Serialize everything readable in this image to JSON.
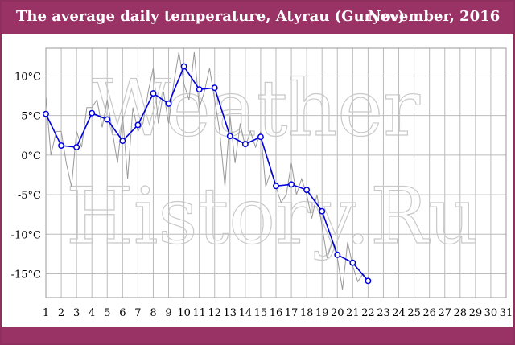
{
  "header": {
    "title": "The average daily temperature, Atyrau (Guryev)",
    "period": "November, 2016"
  },
  "watermark": {
    "line1": "Weather",
    "line2": "History.Ru"
  },
  "colors": {
    "brand": "#993366",
    "series": "#0000dd",
    "daily_range": "#999999",
    "grid": "#bbbbbb"
  },
  "chart_data": {
    "type": "line",
    "title": "The average daily temperature, Atyrau (Guryev)",
    "subtitle": "November, 2016",
    "x": [
      1,
      2,
      3,
      4,
      5,
      6,
      7,
      8,
      9,
      10,
      11,
      12,
      13,
      14,
      15,
      16,
      17,
      18,
      19,
      20,
      21,
      22
    ],
    "x_ticks": [
      1,
      2,
      3,
      4,
      5,
      6,
      7,
      8,
      9,
      10,
      11,
      12,
      13,
      14,
      15,
      16,
      17,
      18,
      19,
      20,
      21,
      22,
      23,
      24,
      25,
      26,
      27,
      28,
      29,
      30,
      31
    ],
    "y_ticks": [
      10,
      5,
      0,
      -5,
      -10,
      -15
    ],
    "y_tick_labels": [
      "10°C",
      "5°C",
      "0°C",
      "-5°C",
      "-10°C",
      "-15°C"
    ],
    "ylim": [
      -18,
      13.5
    ],
    "xlim": [
      1,
      31
    ],
    "grid": true,
    "series": [
      {
        "values": [
          5.2,
          1.2,
          1.0,
          5.3,
          4.5,
          1.8,
          3.8,
          7.8,
          6.5,
          11.2,
          8.3,
          8.5,
          2.4,
          1.4,
          2.3,
          -3.9,
          -3.7,
          -4.4,
          -7.1,
          -12.6,
          -13.6,
          -15.9
        ]
      }
    ],
    "observations": {
      "x": [
        1,
        1.33,
        1.67,
        2,
        2.33,
        2.67,
        3,
        3.33,
        3.67,
        4,
        4.33,
        4.67,
        5,
        5.33,
        5.67,
        6,
        6.33,
        6.67,
        7,
        7.33,
        7.67,
        8,
        8.33,
        8.67,
        9,
        9.33,
        9.67,
        10,
        10.33,
        10.67,
        11,
        11.33,
        11.67,
        12,
        12.33,
        12.67,
        13,
        13.33,
        13.67,
        14,
        14.33,
        14.67,
        15,
        15.33,
        15.67,
        16,
        16.33,
        16.67,
        17,
        17.33,
        17.67,
        18,
        18.33,
        18.67,
        19,
        19.33,
        19.67,
        20,
        20.33,
        20.67,
        21,
        21.33,
        21.67,
        22
      ],
      "values": [
        7.5,
        0,
        3,
        3,
        -1,
        -4,
        3,
        1,
        6,
        6,
        7,
        3.5,
        7,
        3,
        -1,
        5,
        -3,
        6,
        3,
        4,
        8,
        11,
        4,
        8,
        4,
        9,
        13,
        9,
        7,
        13,
        6,
        8,
        11,
        7,
        3,
        -4,
        5,
        -1,
        4,
        1,
        3,
        1,
        3,
        -4,
        -2,
        -4,
        -6,
        -5,
        -1,
        -5,
        -3,
        -5,
        -8,
        -5,
        -9,
        -13,
        -11,
        -13,
        -17,
        -11,
        -14,
        -16,
        -15,
        -16
      ]
    }
  }
}
